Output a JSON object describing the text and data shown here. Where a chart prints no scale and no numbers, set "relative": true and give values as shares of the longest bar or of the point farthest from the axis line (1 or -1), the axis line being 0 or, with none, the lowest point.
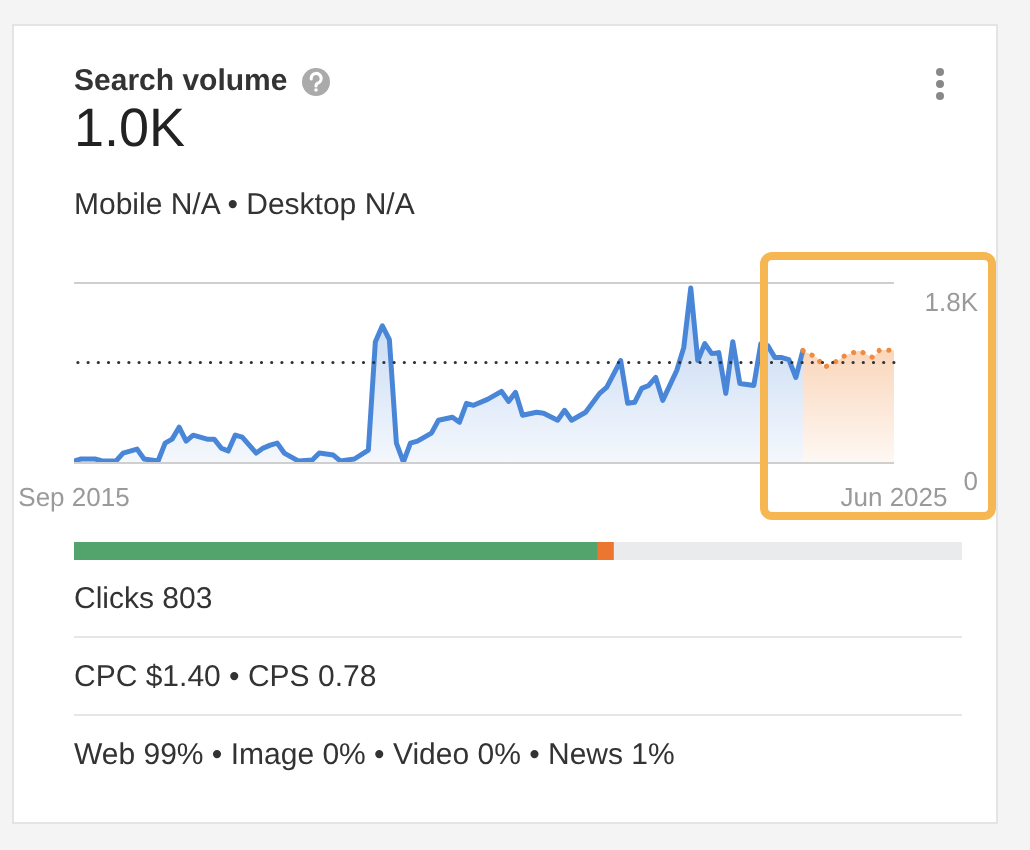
{
  "chart_data": [
    {
      "type": "area",
      "title": "Search volume",
      "annotations": [
        "1.0K",
        "Mobile N/A • Desktop N/A"
      ],
      "xlim": [
        "2015-09",
        "2025-06"
      ],
      "xticks": [
        {
          "value": "2015-09",
          "label": "Sep 2015"
        },
        {
          "value": "2025-06",
          "label": "Jun 2025"
        }
      ],
      "ylim": [
        0,
        1800
      ],
      "yticks": [
        0,
        {
          "value": 1800,
          "label": "1.8K"
        }
      ],
      "ref_lines": [
        {
          "axis": "y",
          "value": 1000,
          "color": "#333333",
          "line_style": "dotted"
        }
      ],
      "series": [
        {
          "color": "#4a86d8",
          "x": [
            "2015-09",
            "2015-10",
            "2015-12",
            "2016-01",
            "2016-03",
            "2016-04",
            "2016-05",
            "2016-06",
            "2016-07",
            "2016-08",
            "2016-09",
            "2016-10",
            "2016-11",
            "2016-12",
            "2017-01",
            "2017-02",
            "2017-04",
            "2017-05",
            "2017-06",
            "2017-07",
            "2017-08",
            "2017-09",
            "2017-11",
            "2017-12",
            "2018-01",
            "2018-02",
            "2018-03",
            "2018-05",
            "2018-07",
            "2018-08",
            "2018-10",
            "2018-11",
            "2018-12",
            "2019-01",
            "2019-03",
            "2019-04",
            "2019-05",
            "2019-06",
            "2019-07",
            "2019-08",
            "2019-09",
            "2019-10",
            "2019-12",
            "2020-01",
            "2020-03",
            "2020-04",
            "2020-05",
            "2020-06",
            "2020-08",
            "2020-10",
            "2020-11",
            "2020-12",
            "2021-01",
            "2021-03",
            "2021-04",
            "2021-06",
            "2021-07",
            "2021-08",
            "2021-10",
            "2021-12",
            "2022-01",
            "2022-03",
            "2022-04",
            "2022-05",
            "2022-06",
            "2022-07",
            "2022-08",
            "2022-09",
            "2022-11",
            "2022-12",
            "2023-01",
            "2023-02",
            "2023-03",
            "2023-04",
            "2023-05",
            "2023-06",
            "2023-07",
            "2023-08",
            "2023-10",
            "2023-11",
            "2023-12",
            "2024-01",
            "2024-02",
            "2024-03",
            "2024-04",
            "2024-05"
          ],
          "values": [
            10,
            30,
            30,
            10,
            10,
            90,
            110,
            130,
            30,
            20,
            10,
            190,
            230,
            350,
            210,
            270,
            230,
            230,
            140,
            110,
            270,
            250,
            90,
            140,
            170,
            190,
            90,
            10,
            20,
            90,
            70,
            10,
            20,
            30,
            120,
            1210,
            1370,
            1230,
            190,
            0,
            190,
            210,
            290,
            420,
            450,
            400,
            590,
            570,
            630,
            710,
            610,
            700,
            470,
            500,
            490,
            420,
            520,
            420,
            500,
            690,
            750,
            1020,
            590,
            600,
            740,
            770,
            850,
            620,
            920,
            1150,
            1750,
            1020,
            1190,
            1090,
            1100,
            690,
            1210,
            790,
            770,
            1190,
            1170,
            1050,
            1050,
            1030,
            850,
            1120
          ]
        },
        {
          "color": "#f08a3c",
          "line_style": "dotted",
          "x": [
            "2024-05",
            "2024-07",
            "2024-08",
            "2024-10",
            "2024-11",
            "2025-01",
            "2025-03",
            "2025-04",
            "2025-06"
          ],
          "values": [
            1120,
            1050,
            950,
            1020,
            1070,
            1120,
            1050,
            1130,
            1120
          ]
        }
      ]
    },
    {
      "type": "bar",
      "orientation": "horizontal",
      "stacked": true,
      "relative": true,
      "categories": [
        null
      ],
      "annotations": [
        "Clicks 803",
        "CPC $1.40 • CPS 0.78",
        "Web 99% • Image 0% • Video 0% • News 1%"
      ],
      "series": [
        {
          "color": "#52a46c",
          "values": [
            0.59
          ]
        },
        {
          "color": "#ec7530",
          "values": [
            0.018
          ]
        },
        {
          "color": "#e9ebed",
          "values": [
            0.392
          ]
        }
      ]
    }
  ]
}
